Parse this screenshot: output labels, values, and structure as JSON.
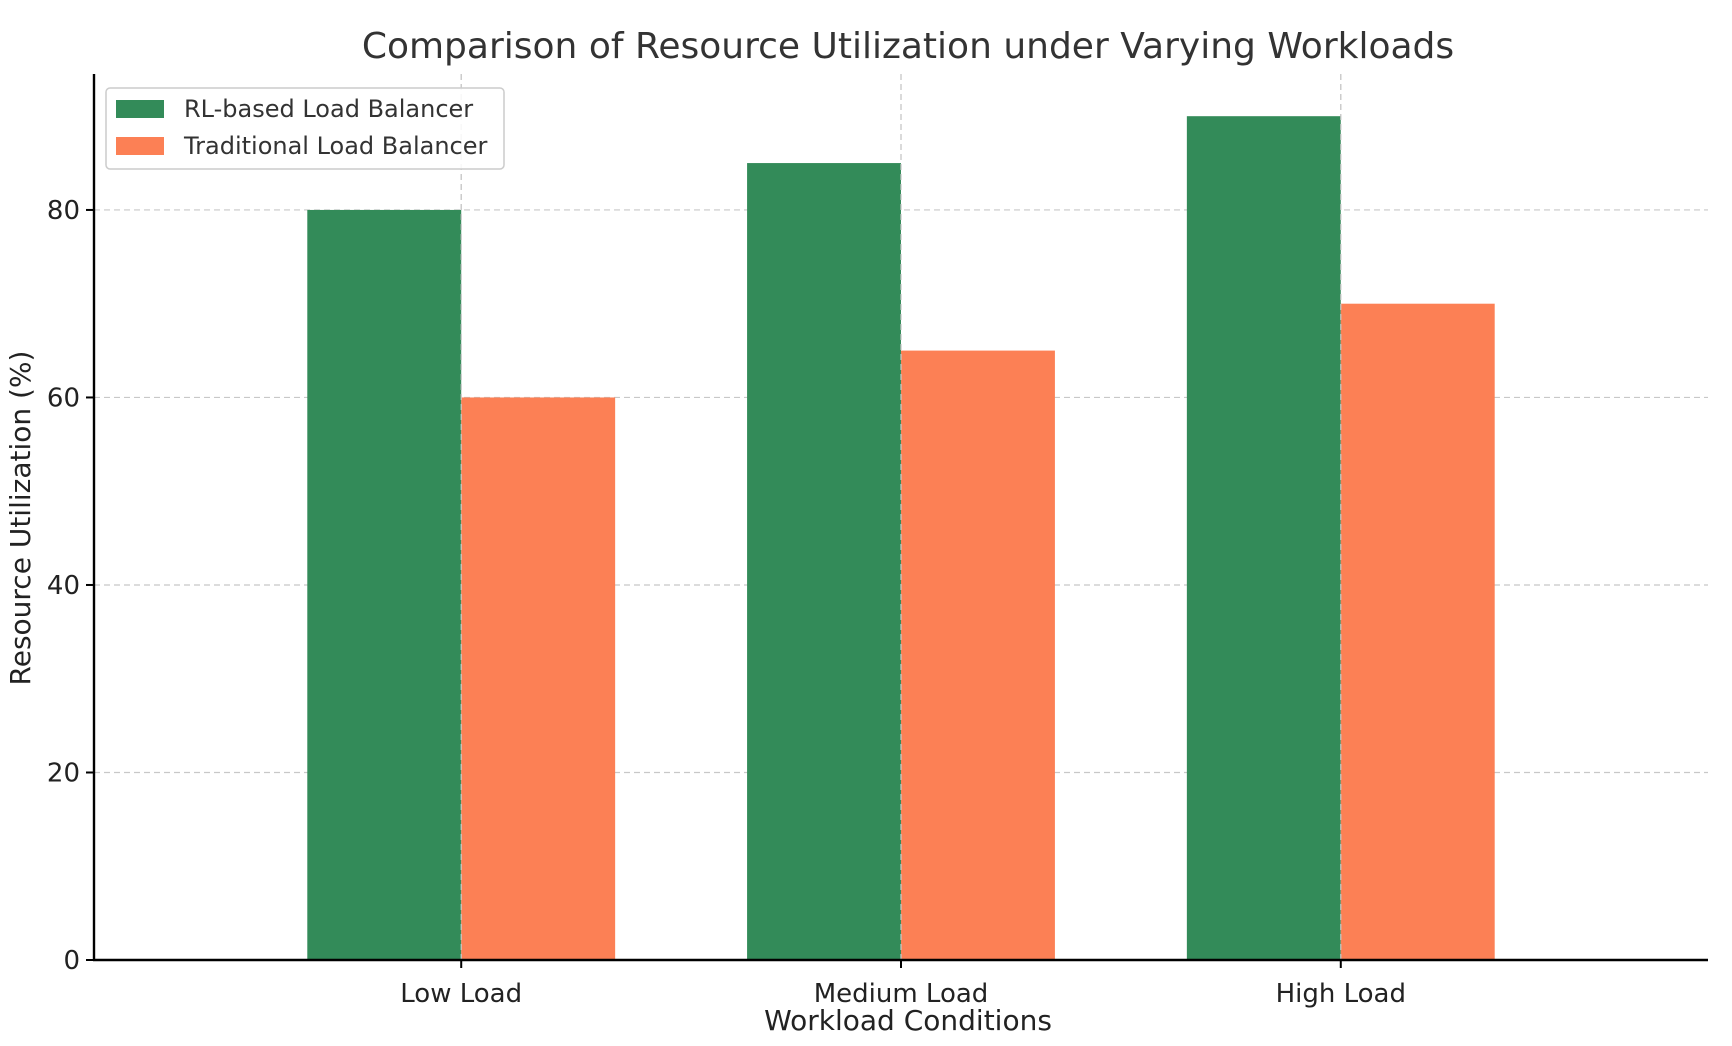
{
  "chart_data": {
    "type": "bar",
    "title": "Comparison of Resource Utilization under Varying Workloads",
    "xlabel": "Workload Conditions",
    "ylabel": "Resource Utilization (%)",
    "categories": [
      "Low Load",
      "Medium Load",
      "High Load"
    ],
    "series": [
      {
        "name": "RL-based Load Balancer",
        "values": [
          80,
          85,
          90
        ],
        "color": "#338b59"
      },
      {
        "name": "Traditional Load Balancer",
        "values": [
          60,
          65,
          70
        ],
        "color": "#fc8055"
      }
    ],
    "ylim": [
      0,
      94.5
    ],
    "yticks": [
      0,
      20,
      40,
      60,
      80
    ],
    "grid": true,
    "legend_position": "top-left"
  }
}
